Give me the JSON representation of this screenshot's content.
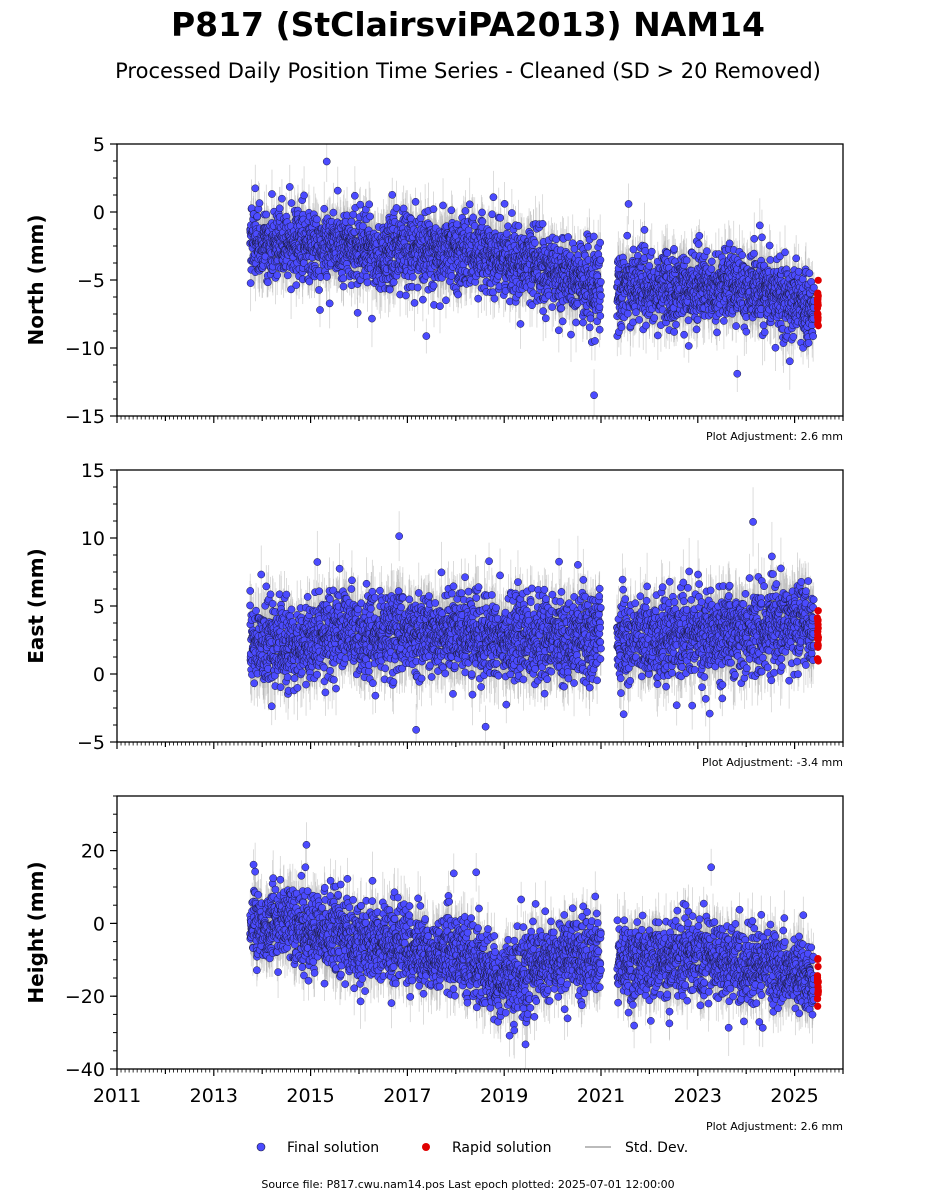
{
  "title": "P817 (StClairsviPA2013) NAM14",
  "subtitle": "Processed Daily Position Time Series - Cleaned (SD > 20 Removed)",
  "source_note": "Source file: P817.cwu.nam14.pos  Last epoch plotted: 2025-07-01 12:00:00",
  "colors": {
    "final": "#4b4bff",
    "rapid": "#e00000",
    "stddev": "#b0b0b0",
    "marker_edge": "#1a1a3a"
  },
  "legend": {
    "final": "Final solution",
    "rapid": "Rapid solution",
    "stddev": "Std. Dev."
  },
  "chart_data": [
    {
      "type": "scatter",
      "ylabel": "North (mm)",
      "ylim": [
        -15,
        5
      ],
      "yticks": [
        5,
        0,
        -5,
        -10,
        -15
      ],
      "xlim": [
        2011,
        2026
      ],
      "adjustment": "Plot Adjustment: 2.6 mm",
      "series": [
        {
          "name": "Final solution",
          "x": [
            2013.75,
            2014.0,
            2014.5,
            2015.0,
            2015.5,
            2016.0,
            2016.5,
            2017.0,
            2017.5,
            2018.0,
            2018.5,
            2019.0,
            2019.5,
            2020.0,
            2020.5,
            2020.95,
            2021.4,
            2021.8,
            2022.3,
            2022.8,
            2023.3,
            2023.8,
            2024.3,
            2024.8,
            2025.2,
            2025.4
          ],
          "y": [
            -2.3,
            -2.6,
            -2.0,
            -2.4,
            -2.5,
            -2.9,
            -3.0,
            -2.9,
            -3.0,
            -2.8,
            -3.2,
            -3.5,
            -3.8,
            -4.4,
            -5.0,
            -5.5,
            -5.5,
            -5.4,
            -5.5,
            -5.6,
            -5.6,
            -5.6,
            -5.8,
            -6.2,
            -7.2,
            -7.0
          ],
          "noise": 1.3
        },
        {
          "name": "Rapid solution",
          "x": [
            2025.38,
            2025.5
          ],
          "y": [
            -6.8,
            -7.0
          ],
          "noise": 1.0
        }
      ]
    },
    {
      "type": "scatter",
      "ylabel": "East (mm)",
      "ylim": [
        -5,
        15
      ],
      "yticks": [
        15,
        10,
        5,
        0,
        -5
      ],
      "xlim": [
        2011,
        2026
      ],
      "adjustment": "Plot Adjustment: -3.4 mm",
      "series": [
        {
          "name": "Final solution",
          "x": [
            2013.75,
            2014.0,
            2014.5,
            2015.0,
            2015.5,
            2016.0,
            2016.5,
            2017.0,
            2017.5,
            2018.0,
            2018.5,
            2019.0,
            2019.5,
            2020.0,
            2020.5,
            2020.95,
            2021.4,
            2021.8,
            2022.3,
            2022.8,
            2023.3,
            2023.8,
            2024.3,
            2024.8,
            2025.2,
            2025.4
          ],
          "y": [
            2.6,
            2.4,
            2.1,
            2.3,
            3.2,
            3.0,
            2.8,
            3.0,
            3.0,
            3.1,
            2.8,
            2.7,
            2.6,
            2.6,
            2.7,
            2.9,
            2.4,
            2.6,
            2.6,
            2.8,
            2.9,
            3.2,
            3.4,
            3.8,
            4.0,
            3.5
          ],
          "noise": 1.5
        },
        {
          "name": "Rapid solution",
          "x": [
            2025.38,
            2025.5
          ],
          "y": [
            2.6,
            2.0
          ],
          "noise": 1.3
        }
      ]
    },
    {
      "type": "scatter",
      "ylabel": "Height (mm)",
      "ylim": [
        -40,
        35
      ],
      "yticks": [
        20,
        0,
        -20,
        -40
      ],
      "xlim": [
        2011,
        2026
      ],
      "xticks": [
        2011,
        2013,
        2015,
        2017,
        2019,
        2021,
        2023,
        2025
      ],
      "adjustment": "Plot Adjustment: 2.6 mm",
      "series": [
        {
          "name": "Final solution",
          "x": [
            2013.75,
            2014.0,
            2014.5,
            2015.0,
            2015.5,
            2016.0,
            2016.5,
            2017.0,
            2017.5,
            2018.0,
            2018.5,
            2019.0,
            2019.5,
            2020.0,
            2020.5,
            2020.95,
            2021.4,
            2021.8,
            2022.3,
            2022.8,
            2023.3,
            2023.8,
            2024.3,
            2024.8,
            2025.2,
            2025.4
          ],
          "y": [
            0.0,
            -2.0,
            1.0,
            -3.0,
            -2.0,
            -6.0,
            -4.0,
            -7.0,
            -9.0,
            -8.0,
            -12.0,
            -16.0,
            -12.0,
            -10.0,
            -8.0,
            -9.0,
            -10.0,
            -11.0,
            -10.0,
            -9.0,
            -10.0,
            -11.0,
            -12.0,
            -13.0,
            -15.0,
            -17.0
          ],
          "noise": 5.0
        },
        {
          "name": "Rapid solution",
          "x": [
            2025.38,
            2025.5
          ],
          "y": [
            -16.0,
            -17.0
          ],
          "noise": 4.0
        }
      ]
    }
  ]
}
